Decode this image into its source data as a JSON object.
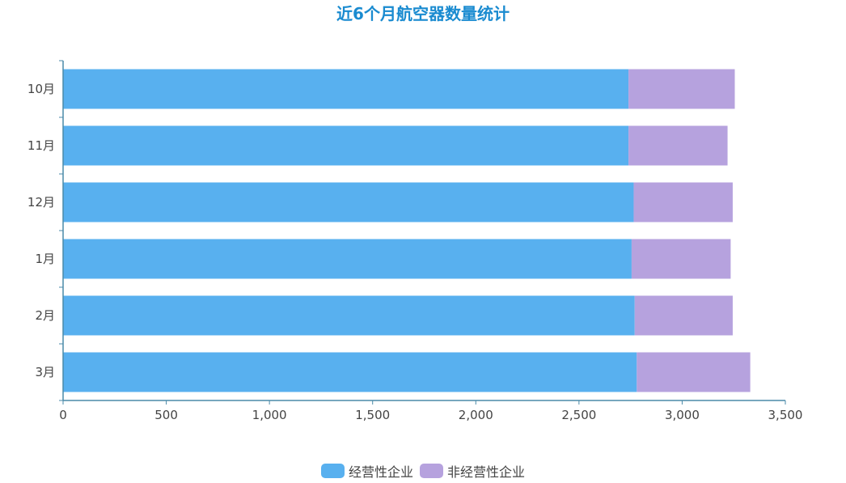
{
  "chart_data": {
    "type": "bar",
    "orientation": "horizontal",
    "stacked": true,
    "title": "近6个月航空器数量统计",
    "categories": [
      "10月",
      "11月",
      "12月",
      "1月",
      "2月",
      "3月"
    ],
    "series": [
      {
        "name": "经营性企业",
        "color": "#58b0ef",
        "values": [
          2740,
          2740,
          2765,
          2755,
          2770,
          2780
        ]
      },
      {
        "name": "非经营性企业",
        "color": "#b6a2de",
        "values": [
          515,
          480,
          480,
          480,
          475,
          550
        ]
      }
    ],
    "xlim": [
      0,
      3500
    ],
    "x_ticks": [
      "0",
      "500",
      "1,000",
      "1,500",
      "2,000",
      "2,500",
      "3,000",
      "3,500"
    ],
    "x_tick_values": [
      0,
      500,
      1000,
      1500,
      2000,
      2500,
      3000,
      3500
    ],
    "grid": false,
    "legend_position": "bottom"
  }
}
